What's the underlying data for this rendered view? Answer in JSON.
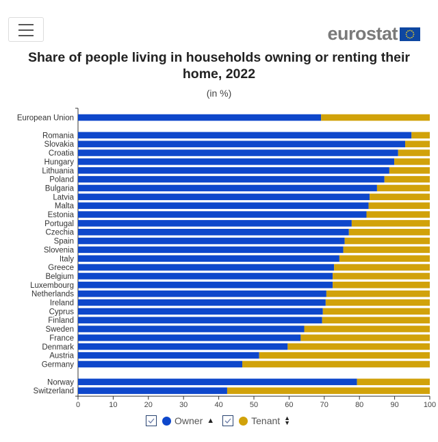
{
  "header": {
    "menu_icon": "hamburger-menu-icon",
    "logo_text": "eurostat",
    "logo_icon": "eu-flag-icon"
  },
  "chart_data": {
    "type": "bar",
    "orientation": "horizontal",
    "stacked": true,
    "title": "Share of people living in households owning or renting their home, 2022",
    "title_line1": "Share of people living in households owning or renting their",
    "title_line2": "home, 2022",
    "subtitle": "(in %)",
    "xlabel": "",
    "ylabel": "",
    "xlim": [
      0,
      100
    ],
    "xticks": [
      0,
      10,
      20,
      30,
      40,
      50,
      60,
      70,
      80,
      90,
      100
    ],
    "grid": false,
    "legend_position": "bottom",
    "groups": [
      {
        "categories": [
          "European Union"
        ]
      },
      {
        "categories": [
          "Romania",
          "Slovakia",
          "Croatia",
          "Hungary",
          "Lithuania",
          "Poland",
          "Bulgaria",
          "Latvia",
          "Malta",
          "Estonia",
          "Portugal",
          "Czechia",
          "Spain",
          "Slovenia",
          "Italy",
          "Greece",
          "Belgium",
          "Luxembourg",
          "Netherlands",
          "Ireland",
          "Cyprus",
          "Finland",
          "Sweden",
          "France",
          "Denmark",
          "Austria",
          "Germany"
        ]
      },
      {
        "categories": [
          "Norway",
          "Switzerland"
        ]
      }
    ],
    "categories": [
      "European Union",
      "Romania",
      "Slovakia",
      "Croatia",
      "Hungary",
      "Lithuania",
      "Poland",
      "Bulgaria",
      "Latvia",
      "Malta",
      "Estonia",
      "Portugal",
      "Czechia",
      "Spain",
      "Slovenia",
      "Italy",
      "Greece",
      "Belgium",
      "Luxembourg",
      "Netherlands",
      "Ireland",
      "Cyprus",
      "Finland",
      "Sweden",
      "France",
      "Denmark",
      "Austria",
      "Germany",
      "Norway",
      "Switzerland"
    ],
    "series": [
      {
        "name": "Owner",
        "color": "#0e47cb",
        "values": [
          69.1,
          94.8,
          93.0,
          91.0,
          89.9,
          88.5,
          87.1,
          85.0,
          82.9,
          82.6,
          82.0,
          77.8,
          77.0,
          75.8,
          75.4,
          74.3,
          72.8,
          72.4,
          72.4,
          70.6,
          70.4,
          69.6,
          69.4,
          64.3,
          63.3,
          59.6,
          51.5,
          46.7,
          79.3,
          42.4
        ]
      },
      {
        "name": "Tenant",
        "color": "#d1a20a",
        "values": [
          30.9,
          5.2,
          7.0,
          9.0,
          10.1,
          11.5,
          12.9,
          15.0,
          17.1,
          17.4,
          18.0,
          22.2,
          23.0,
          24.2,
          24.6,
          25.7,
          27.2,
          27.6,
          27.6,
          29.4,
          29.6,
          30.4,
          30.6,
          35.7,
          36.7,
          40.4,
          48.5,
          53.3,
          20.7,
          57.6
        ]
      }
    ]
  },
  "legend": {
    "items": [
      {
        "label": "Owner",
        "checked": true,
        "color": "#0e47cb",
        "sort_icon": "sort-asc-icon"
      },
      {
        "label": "Tenant",
        "checked": true,
        "color": "#d1a20a",
        "sort_icon": "sort-both-icon"
      }
    ]
  }
}
